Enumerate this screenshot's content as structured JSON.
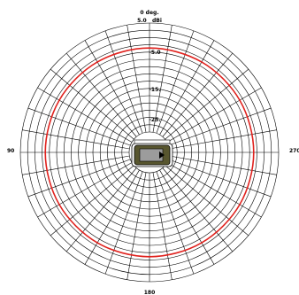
{
  "chart_data": {
    "type": "polar",
    "title": "0 deg.",
    "subtitle": "5.0   dBi",
    "direction_labels": {
      "top": "0 deg.",
      "left": "90",
      "right": "270",
      "bottom": "180"
    },
    "radial_unit": "dB",
    "radial_max": 5.0,
    "ring_labels": [
      {
        "value": -5,
        "text": "-5.0"
      },
      {
        "value": -15,
        "text": "-15."
      },
      {
        "value": -25,
        "text": "-25."
      }
    ],
    "ring_step": 2.5,
    "ring_min": -32.5,
    "spoke_step_deg": 10,
    "series": [
      {
        "name": "",
        "color": "#e0221e",
        "angles_deg": [
          0,
          30,
          60,
          90,
          120,
          150,
          180,
          210,
          240,
          270,
          300,
          330
        ],
        "values_db": [
          -3.6,
          -3.6,
          -3.6,
          -3.6,
          -3.6,
          -3.6,
          -3.6,
          -3.6,
          -3.6,
          -3.6,
          -3.6,
          -3.6
        ]
      }
    ],
    "center_icon": "device-icon",
    "grid": true
  }
}
